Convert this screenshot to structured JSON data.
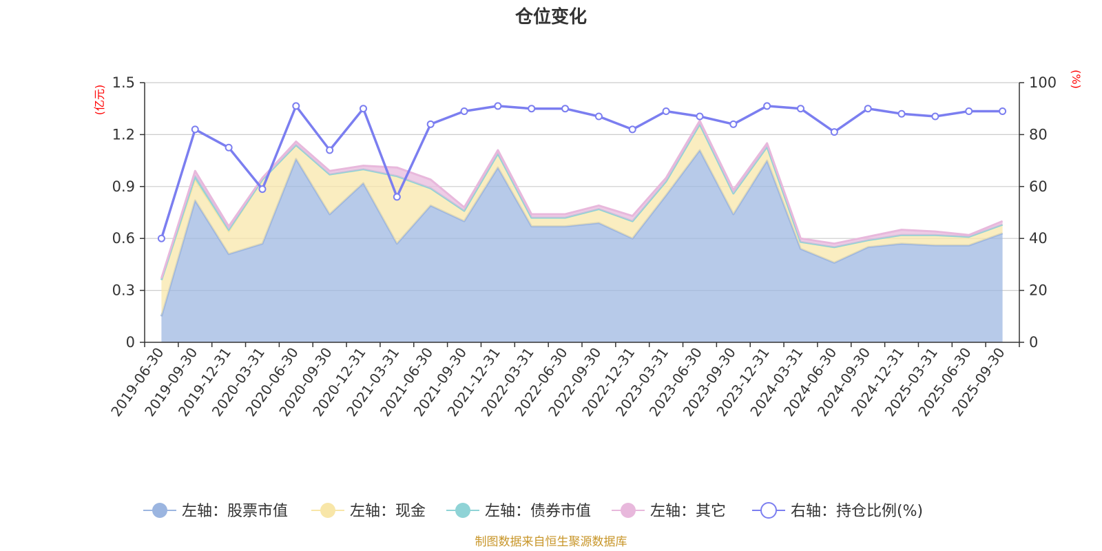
{
  "chart_data": {
    "type": "area",
    "title": "仓位变化",
    "left_axis": {
      "unit_label": "(亿元)",
      "ylim": [
        0,
        1.5
      ],
      "ticks": [
        "0",
        "0.3",
        "0.6",
        "0.9",
        "1.2",
        "1.5"
      ]
    },
    "right_axis": {
      "unit_label": "(%)",
      "ylim": [
        0,
        100
      ],
      "ticks": [
        "0",
        "20",
        "40",
        "60",
        "80",
        "100"
      ]
    },
    "grid": true,
    "legend_position": "bottom",
    "categories": [
      "2019-06-30",
      "2019-09-30",
      "2019-12-31",
      "2020-03-31",
      "2020-06-30",
      "2020-09-30",
      "2020-12-31",
      "2021-03-31",
      "2021-06-30",
      "2021-09-30",
      "2021-12-31",
      "2022-03-31",
      "2022-06-30",
      "2022-09-30",
      "2022-12-31",
      "2023-03-31",
      "2023-06-30",
      "2023-09-30",
      "2023-12-31",
      "2024-03-31",
      "2024-06-30",
      "2024-09-30",
      "2024-12-31",
      "2025-03-31",
      "2025-06-30",
      "2025-09-30"
    ],
    "series": [
      {
        "name": "左轴：股票市值",
        "axis": "left",
        "color": "#9bb5e0",
        "values": [
          0.15,
          0.82,
          0.51,
          0.57,
          1.06,
          0.74,
          0.92,
          0.57,
          0.79,
          0.7,
          1.01,
          0.67,
          0.67,
          0.69,
          0.6,
          0.85,
          1.11,
          0.74,
          1.05,
          0.54,
          0.46,
          0.55,
          0.57,
          0.56,
          0.56,
          0.63
        ]
      },
      {
        "name": "左轴：现金",
        "axis": "left",
        "color": "#f8e6a8",
        "values": [
          0.21,
          0.12,
          0.13,
          0.37,
          0.08,
          0.23,
          0.08,
          0.39,
          0.1,
          0.06,
          0.08,
          0.05,
          0.05,
          0.08,
          0.1,
          0.08,
          0.15,
          0.12,
          0.08,
          0.04,
          0.09,
          0.04,
          0.05,
          0.06,
          0.05,
          0.05
        ]
      },
      {
        "name": "左轴：债券市值",
        "axis": "left",
        "color": "#8fd3d6",
        "values": [
          0.0,
          0.02,
          0.01,
          0.0,
          0.0,
          0.0,
          0.0,
          0.0,
          0.0,
          0.0,
          0.0,
          0.0,
          0.0,
          0.0,
          0.0,
          0.0,
          0.0,
          0.0,
          0.0,
          0.0,
          0.0,
          0.0,
          0.0,
          0.0,
          0.0,
          0.0
        ]
      },
      {
        "name": "左轴：其它",
        "axis": "left",
        "color": "#e8b8dc",
        "values": [
          0.01,
          0.03,
          0.02,
          0.01,
          0.02,
          0.02,
          0.02,
          0.05,
          0.05,
          0.02,
          0.02,
          0.02,
          0.02,
          0.02,
          0.03,
          0.02,
          0.02,
          0.02,
          0.02,
          0.02,
          0.02,
          0.02,
          0.03,
          0.02,
          0.01,
          0.02
        ]
      },
      {
        "name": "右轴：持仓比例(%)",
        "axis": "right",
        "color": "#7b7ef0",
        "values": [
          40,
          82,
          75,
          59,
          91,
          74,
          90,
          56,
          84,
          89,
          91,
          90,
          90,
          87,
          82,
          89,
          87,
          84,
          91,
          90,
          81,
          90,
          88,
          87,
          89,
          89
        ]
      }
    ]
  },
  "source_note": "制图数据来自恒生聚源数据库"
}
